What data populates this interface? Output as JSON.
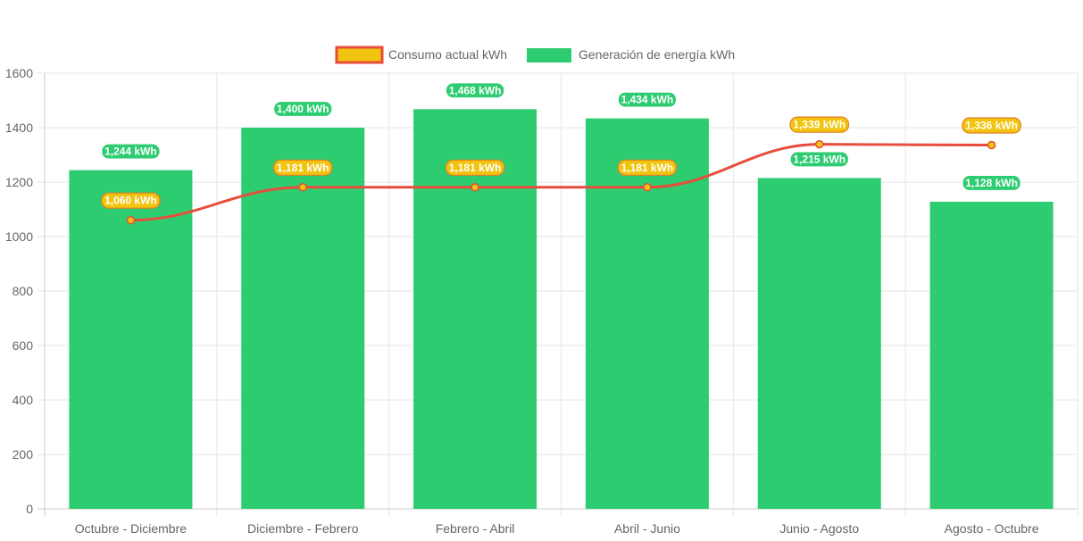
{
  "colors": {
    "bar": "#2ecc71",
    "line": "#e74c3c",
    "point": "#f1c40f",
    "consumo_label_bg": "#f1c40f",
    "consumo_label_border": "#e67e22",
    "grid": "#e5e5e5",
    "axis_text": "#666666"
  },
  "chart_data": {
    "type": "bar",
    "categories": [
      "Octubre - Diciembre",
      "Diciembre - Febrero",
      "Febrero - Abril",
      "Abril - Junio",
      "Junio - Agosto",
      "Agosto - Octubre"
    ],
    "series": [
      {
        "name": "Consumo actual kWh",
        "type": "line",
        "values": [
          1060,
          1181,
          1181,
          1181,
          1339,
          1336
        ],
        "labels": [
          "1,060 kWh",
          "1,181 kWh",
          "1,181 kWh",
          "1,181 kWh",
          "1,339 kWh",
          "1,336 kWh"
        ]
      },
      {
        "name": "Generación de energía kWh",
        "type": "bar",
        "values": [
          1244,
          1400,
          1468,
          1434,
          1215,
          1128
        ],
        "labels": [
          "1,244 kWh",
          "1,400 kWh",
          "1,468 kWh",
          "1,434 kWh",
          "1,215 kWh",
          "1,128 kWh"
        ]
      }
    ],
    "y_ticks": [
      "0",
      "200",
      "400",
      "600",
      "800",
      "1000",
      "1200",
      "1400",
      "1600"
    ],
    "ylim": [
      0,
      1600
    ],
    "title": "",
    "xlabel": "",
    "ylabel": "",
    "legend_position": "top-center",
    "grid": true
  }
}
